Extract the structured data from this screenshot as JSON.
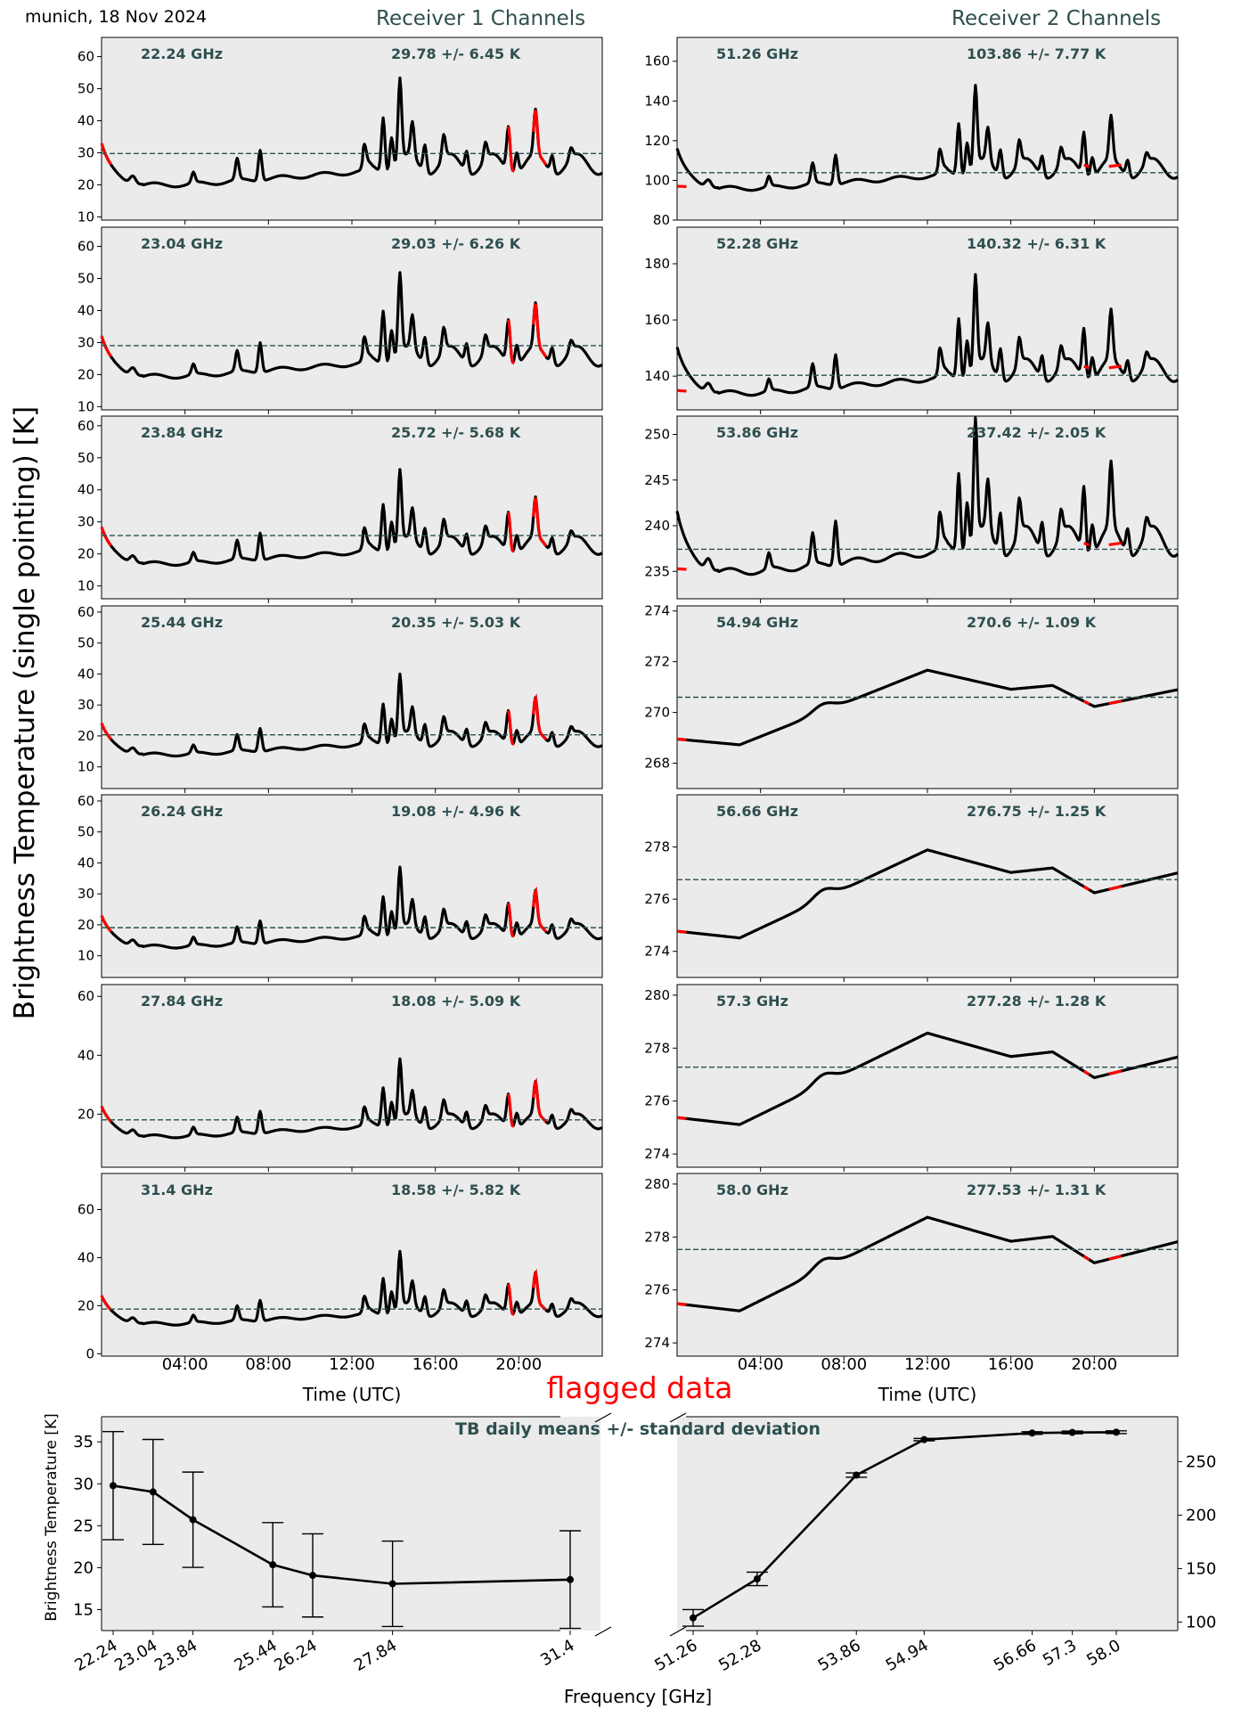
{
  "header": {
    "station_date": "munich, 18 Nov 2024",
    "receiver1_title": "Receiver 1 Channels",
    "receiver2_title": "Receiver 2 Channels",
    "ylabel": "Brightness Temperature (single pointing) [K]",
    "xlabel_time": "Time (UTC)",
    "flagged_label": "flagged data"
  },
  "colors": {
    "line": "#000000",
    "flagged": "#ff0000",
    "accent": "#2f4f4f",
    "panel_bg": "#ebebeb"
  },
  "time_ticks": [
    "04:00",
    "08:00",
    "12:00",
    "16:00",
    "20:00"
  ],
  "chart_data": [
    {
      "type": "line",
      "receiver": 1,
      "freq_label": "22.24 GHz",
      "stats_label": "29.78 +/- 6.45 K",
      "mean": 29.78,
      "std": 6.45,
      "ylim": [
        9,
        66
      ],
      "yticks": [
        10,
        20,
        30,
        40,
        50,
        60
      ],
      "base": 20
    },
    {
      "type": "line",
      "receiver": 1,
      "freq_label": "23.04 GHz",
      "stats_label": "29.03 +/- 6.26 K",
      "mean": 29.03,
      "std": 6.26,
      "ylim": [
        9,
        66
      ],
      "yticks": [
        10,
        20,
        30,
        40,
        50,
        60
      ],
      "base": 19.5
    },
    {
      "type": "line",
      "receiver": 1,
      "freq_label": "23.84 GHz",
      "stats_label": "25.72 +/- 5.68 K",
      "mean": 25.72,
      "std": 5.68,
      "ylim": [
        6,
        63
      ],
      "yticks": [
        10,
        20,
        30,
        40,
        50,
        60
      ],
      "base": 17
    },
    {
      "type": "line",
      "receiver": 1,
      "freq_label": "25.44 GHz",
      "stats_label": "20.35 +/- 5.03 K",
      "mean": 20.35,
      "std": 5.03,
      "ylim": [
        3,
        62
      ],
      "yticks": [
        10,
        20,
        30,
        40,
        50,
        60
      ],
      "base": 14
    },
    {
      "type": "line",
      "receiver": 1,
      "freq_label": "26.24 GHz",
      "stats_label": "19.08 +/- 4.96 K",
      "mean": 19.08,
      "std": 4.96,
      "ylim": [
        3,
        62
      ],
      "yticks": [
        10,
        20,
        30,
        40,
        50,
        60
      ],
      "base": 13
    },
    {
      "type": "line",
      "receiver": 1,
      "freq_label": "27.84 GHz",
      "stats_label": "18.08 +/- 5.09 K",
      "mean": 18.08,
      "std": 5.09,
      "ylim": [
        2,
        64
      ],
      "yticks": [
        20,
        40,
        60
      ],
      "base": 12.5
    },
    {
      "type": "line",
      "receiver": 1,
      "freq_label": "31.4 GHz",
      "stats_label": "18.58 +/- 5.82 K",
      "mean": 18.58,
      "std": 5.82,
      "ylim": [
        -1,
        75
      ],
      "yticks": [
        0,
        20,
        40,
        60
      ],
      "base": 12.5
    },
    {
      "type": "line",
      "receiver": 2,
      "freq_label": "51.26 GHz",
      "stats_label": "103.86 +/- 7.77 K",
      "mean": 103.86,
      "std": 7.77,
      "ylim": [
        80,
        172
      ],
      "yticks": [
        80,
        100,
        120,
        140,
        160
      ],
      "base": 96
    },
    {
      "type": "line",
      "receiver": 2,
      "freq_label": "52.28 GHz",
      "stats_label": "140.32 +/- 6.31 K",
      "mean": 140.32,
      "std": 6.31,
      "ylim": [
        128,
        193
      ],
      "yticks": [
        140,
        160,
        180
      ],
      "base": 134
    },
    {
      "type": "line",
      "receiver": 2,
      "freq_label": "53.86 GHz",
      "stats_label": "237.42 +/- 2.05 K",
      "mean": 237.42,
      "std": 2.05,
      "ylim": [
        232,
        252
      ],
      "yticks": [
        235,
        240,
        245,
        250
      ],
      "base": 235
    },
    {
      "type": "line",
      "receiver": 2,
      "freq_label": "54.94 GHz",
      "stats_label": "270.6 +/- 1.09 K",
      "mean": 270.6,
      "std": 1.09,
      "ylim": [
        267,
        274.2
      ],
      "yticks": [
        268,
        270,
        272,
        274
      ],
      "base": 268.8
    },
    {
      "type": "line",
      "receiver": 2,
      "freq_label": "56.66 GHz",
      "stats_label": "276.75 +/- 1.25 K",
      "mean": 276.75,
      "std": 1.25,
      "ylim": [
        273,
        280
      ],
      "yticks": [
        274,
        276,
        278
      ],
      "base": 274.6
    },
    {
      "type": "line",
      "receiver": 2,
      "freq_label": "57.3 GHz",
      "stats_label": "277.28 +/- 1.28 K",
      "mean": 277.28,
      "std": 1.28,
      "ylim": [
        273.5,
        280.4
      ],
      "yticks": [
        274,
        276,
        278,
        280
      ],
      "base": 275.2
    },
    {
      "type": "line",
      "receiver": 2,
      "freq_label": "58.0 GHz",
      "stats_label": "277.53 +/- 1.31 K",
      "mean": 277.53,
      "std": 1.31,
      "ylim": [
        273.5,
        280.4
      ],
      "yticks": [
        274,
        276,
        278,
        280
      ],
      "base": 275.3
    }
  ],
  "summary": {
    "type": "line",
    "title": "TB daily means +/- standard deviation",
    "ylabel": "Brightness Temperature [K]",
    "xlabel": "Frequency [GHz]",
    "left": {
      "x": [
        22.24,
        23.04,
        23.84,
        25.44,
        26.24,
        27.84,
        31.4
      ],
      "tick_labels": [
        "22.24",
        "23.04",
        "23.84",
        "25.44",
        "26.24",
        "27.84",
        "31.4"
      ],
      "mean": [
        29.78,
        29.03,
        25.72,
        20.35,
        19.08,
        18.08,
        18.58
      ],
      "std": [
        6.45,
        6.26,
        5.68,
        5.03,
        4.96,
        5.09,
        5.82
      ],
      "ylim": [
        12.5,
        38
      ],
      "yticks": [
        15,
        20,
        25,
        30,
        35
      ]
    },
    "right": {
      "x": [
        51.26,
        52.28,
        53.86,
        54.94,
        56.66,
        57.3,
        58.0
      ],
      "tick_labels": [
        "51.26",
        "52.28",
        "53.86",
        "54.94",
        "56.66",
        "57.3",
        "58.0"
      ],
      "mean": [
        103.86,
        140.32,
        237.42,
        270.6,
        276.75,
        277.28,
        277.53
      ],
      "std": [
        7.77,
        6.31,
        2.05,
        1.09,
        1.25,
        1.28,
        1.31
      ],
      "ylim": [
        92,
        292
      ],
      "yticks": [
        100,
        150,
        200,
        250
      ]
    }
  }
}
